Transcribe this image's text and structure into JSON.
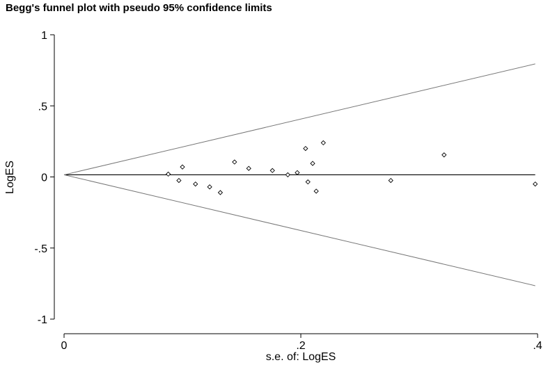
{
  "chart_data": {
    "type": "scatter",
    "title": "Begg's funnel plot with pseudo 95% confidence limits",
    "xlabel": "s.e. of: LogES",
    "ylabel": "LogES",
    "xlim": [
      0,
      0.4
    ],
    "ylim": [
      -1,
      1
    ],
    "x_ticks": [
      0,
      0.2,
      0.4
    ],
    "x_tick_labels": [
      "0",
      ".2",
      ".4"
    ],
    "y_ticks": [
      1,
      0.5,
      0,
      -0.5,
      -1
    ],
    "y_tick_labels": [
      "1",
      ".5",
      "0",
      "-.5",
      "-1"
    ],
    "grid": false,
    "pooled_estimate": 0.015,
    "confidence_multiplier": 1.96,
    "confidence_x_max": 0.398,
    "points": [
      {
        "x": 0.088,
        "y": 0.02
      },
      {
        "x": 0.097,
        "y": -0.025
      },
      {
        "x": 0.1,
        "y": 0.07
      },
      {
        "x": 0.111,
        "y": -0.05
      },
      {
        "x": 0.123,
        "y": -0.07
      },
      {
        "x": 0.132,
        "y": -0.11
      },
      {
        "x": 0.144,
        "y": 0.105
      },
      {
        "x": 0.156,
        "y": 0.06
      },
      {
        "x": 0.176,
        "y": 0.045
      },
      {
        "x": 0.189,
        "y": 0.015
      },
      {
        "x": 0.197,
        "y": 0.03
      },
      {
        "x": 0.204,
        "y": 0.2
      },
      {
        "x": 0.206,
        "y": -0.035
      },
      {
        "x": 0.21,
        "y": 0.095
      },
      {
        "x": 0.213,
        "y": -0.1
      },
      {
        "x": 0.219,
        "y": 0.24
      },
      {
        "x": 0.276,
        "y": -0.025
      },
      {
        "x": 0.321,
        "y": 0.155
      },
      {
        "x": 0.398,
        "y": -0.05
      }
    ]
  }
}
